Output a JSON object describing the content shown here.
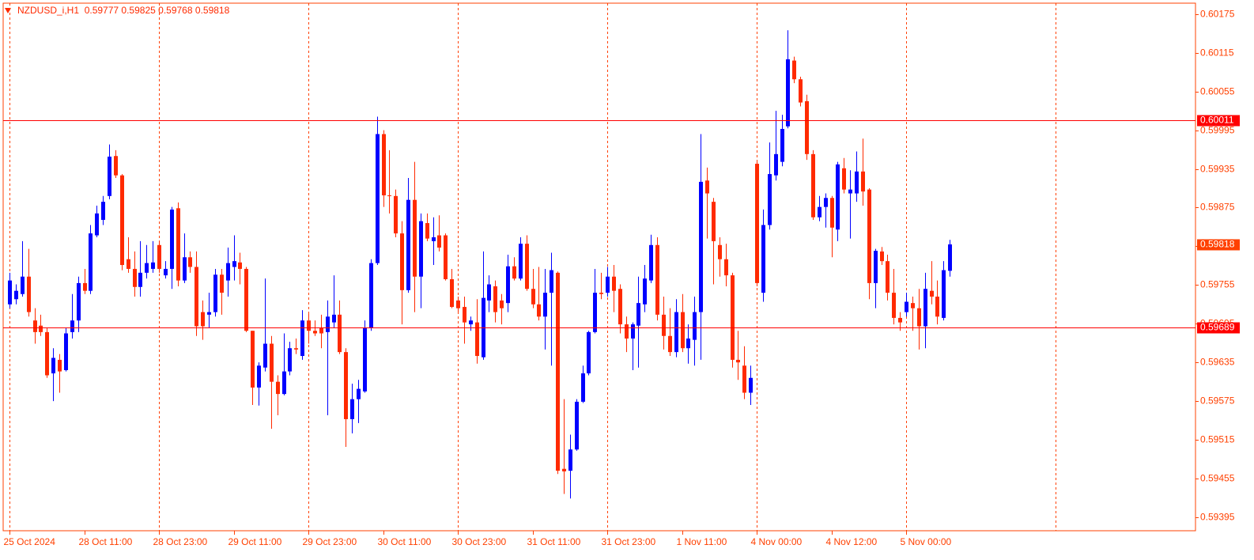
{
  "chart_data": {
    "type": "candlestick",
    "symbol": "NZDUSD_i,H1",
    "up_color": "#0000ff",
    "down_color": "#ff2a00",
    "line_color": "#ff0000",
    "axis_color": "#ff4000",
    "ylim": [
      0.59374,
      0.60192
    ],
    "yticks": [
      0.60175,
      0.60115,
      0.60055,
      0.59995,
      0.59935,
      0.59875,
      0.59815,
      0.59755,
      0.59695,
      0.59635,
      0.59575,
      0.59515,
      0.59455,
      0.59395
    ],
    "xticks": [
      {
        "value": 0,
        "label": "25 Oct 2024"
      },
      {
        "value": 12,
        "label": "28 Oct 11:00"
      },
      {
        "value": 24,
        "label": "28 Oct 23:00"
      },
      {
        "value": 36,
        "label": "29 Oct 11:00"
      },
      {
        "value": 48,
        "label": "29 Oct 23:00"
      },
      {
        "value": 60,
        "label": "30 Oct 11:00"
      },
      {
        "value": 72,
        "label": "30 Oct 23:00"
      },
      {
        "value": 84,
        "label": "31 Oct 11:00"
      },
      {
        "value": 96,
        "label": "31 Oct 23:00"
      },
      {
        "value": 108,
        "label": "1 Nov 11:00"
      },
      {
        "value": 120,
        "label": "4 Nov 00:00"
      },
      {
        "value": 132,
        "label": "4 Nov 12:00"
      },
      {
        "value": 144,
        "label": "5 Nov 00:00"
      }
    ],
    "xgrid": [
      0,
      24,
      48,
      72,
      96,
      120,
      144,
      168
    ],
    "hlines": [
      0.60011,
      0.59689
    ],
    "open": [
      0.59725,
      0.59733,
      0.59741,
      0.59768,
      0.597,
      0.59692,
      0.59682,
      0.59618,
      0.59639,
      0.59623,
      0.59682,
      0.597,
      0.59758,
      0.59746,
      0.59832,
      0.59856,
      0.59893,
      0.59955,
      0.59925,
      0.59795,
      0.5978,
      0.59752,
      0.59774,
      0.5978,
      0.59817,
      0.5977,
      0.5978,
      0.59874,
      0.59762,
      0.59798,
      0.59783,
      0.59713,
      0.59709,
      0.59713,
      0.59771,
      0.59762,
      0.59783,
      0.5979,
      0.5978,
      0.59684,
      0.59596,
      0.59627,
      0.59664,
      0.59605,
      0.59586,
      0.59621,
      0.59657,
      0.59645,
      0.597,
      0.59684,
      0.59688,
      0.59682,
      0.59697,
      0.59709,
      0.59651,
      0.59547,
      0.59578,
      0.5959,
      0.59688,
      0.59789,
      0.59989,
      0.59894,
      0.59893,
      0.59835,
      0.59747,
      0.59887,
      0.59768,
      0.59851,
      0.59823,
      0.59832,
      0.59832,
      0.59764,
      0.59731,
      0.59721,
      0.59694,
      0.59697,
      0.59643,
      0.59731,
      0.59753,
      0.59731,
      0.59727,
      0.59784,
      0.59765,
      0.59819,
      0.59749,
      0.59725,
      0.59706,
      0.59743,
      0.59774,
      0.5947,
      0.59467,
      0.595,
      0.59574,
      0.59618,
      0.59682,
      0.59743,
      0.59743,
      0.59768,
      0.59749,
      0.59694,
      0.59672,
      0.59692,
      0.59725,
      0.59762,
      0.59817,
      0.59709,
      0.59676,
      0.59651,
      0.59713,
      0.59657,
      0.5967,
      0.59713,
      0.59917,
      0.59884,
      0.59817,
      0.59795,
      0.5977,
      0.59639,
      0.5963,
      0.59588,
      0.59943,
      0.59743,
      0.59848,
      0.59925,
      0.59946,
      0.60001,
      0.60103,
      0.60074,
      0.6004,
      0.59958,
      0.5986,
      0.59876,
      0.5989,
      0.59841,
      0.59936,
      0.59897,
      0.59897,
      0.59931,
      0.59903,
      0.59758,
      0.59807,
      0.59792,
      0.59743,
      0.59704,
      0.59713,
      0.59727,
      0.59719,
      0.59691,
      0.59746,
      0.59737,
      0.59704,
      0.59777
    ],
    "high": [
      0.59774,
      0.59756,
      0.59823,
      0.59811,
      0.59719,
      0.59709,
      0.59688,
      0.59657,
      0.59648,
      0.59688,
      0.59741,
      0.59768,
      0.5978,
      0.59848,
      0.59878,
      0.59893,
      0.59973,
      0.59964,
      0.59927,
      0.59829,
      0.59807,
      0.59823,
      0.59817,
      0.59823,
      0.59823,
      0.59792,
      0.59876,
      0.59883,
      0.59835,
      0.59807,
      0.59807,
      0.59731,
      0.59743,
      0.5978,
      0.5978,
      0.59813,
      0.59832,
      0.59805,
      0.59783,
      0.59684,
      0.59635,
      0.59765,
      0.59676,
      0.59615,
      0.5968,
      0.59667,
      0.59672,
      0.59716,
      0.5971,
      0.597,
      0.59709,
      0.59731,
      0.5977,
      0.59731,
      0.59657,
      0.59602,
      0.59608,
      0.597,
      0.59795,
      0.60016,
      0.59995,
      0.59964,
      0.59903,
      0.59854,
      0.59921,
      0.59946,
      0.59866,
      0.59866,
      0.5986,
      0.59863,
      0.59835,
      0.5978,
      0.59737,
      0.59737,
      0.59706,
      0.59733,
      0.59807,
      0.5977,
      0.59762,
      0.59741,
      0.59802,
      0.59798,
      0.59829,
      0.59832,
      0.5978,
      0.59783,
      0.5978,
      0.59805,
      0.59776,
      0.59578,
      0.59523,
      0.59578,
      0.5963,
      0.59684,
      0.5978,
      0.59774,
      0.59783,
      0.59786,
      0.59756,
      0.59706,
      0.59697,
      0.59768,
      0.59786,
      0.59833,
      0.59829,
      0.59737,
      0.59719,
      0.59733,
      0.59741,
      0.59694,
      0.59737,
      0.59989,
      0.59937,
      0.5989,
      0.59829,
      0.59819,
      0.59774,
      0.59684,
      0.5966,
      0.5963,
      0.59946,
      0.59872,
      0.59976,
      0.60025,
      0.60019,
      0.6015,
      0.60109,
      0.60078,
      0.6005,
      0.59964,
      0.59893,
      0.59897,
      0.59893,
      0.59946,
      0.59952,
      0.59933,
      0.59962,
      0.59982,
      0.59905,
      0.59811,
      0.59814,
      0.59802,
      0.5978,
      0.59713,
      0.59743,
      0.59737,
      0.59749,
      0.59774,
      0.59792,
      0.59762,
      0.59792,
      0.59825
    ],
    "low": [
      0.59719,
      0.59725,
      0.59737,
      0.59706,
      0.59664,
      0.59676,
      0.59611,
      0.59575,
      0.59588,
      0.59621,
      0.59672,
      0.59682,
      0.59741,
      0.59741,
      0.59829,
      0.59848,
      0.59888,
      0.59921,
      0.59778,
      0.59774,
      0.59737,
      0.59737,
      0.59765,
      0.59774,
      0.59774,
      0.59765,
      0.59749,
      0.59753,
      0.59758,
      0.59774,
      0.59676,
      0.5967,
      0.59688,
      0.59706,
      0.59709,
      0.59737,
      0.59762,
      0.59756,
      0.59682,
      0.59569,
      0.59568,
      0.59621,
      0.59532,
      0.59553,
      0.59584,
      0.59615,
      0.59648,
      0.59639,
      0.59664,
      0.59676,
      0.59657,
      0.59553,
      0.59688,
      0.59648,
      0.59504,
      0.59525,
      0.59541,
      0.59588,
      0.59684,
      0.59786,
      0.59876,
      0.59866,
      0.59829,
      0.59694,
      0.59743,
      0.59713,
      0.59719,
      0.59823,
      0.59786,
      0.59807,
      0.59762,
      0.59719,
      0.59713,
      0.59664,
      0.59684,
      0.59633,
      0.59639,
      0.59713,
      0.59697,
      0.59694,
      0.59713,
      0.59762,
      0.59762,
      0.59746,
      0.59719,
      0.597,
      0.59655,
      0.5963,
      0.59462,
      0.59431,
      0.59424,
      0.59498,
      0.59572,
      0.59615,
      0.5968,
      0.59733,
      0.59737,
      0.59713,
      0.5968,
      0.59651,
      0.59623,
      0.59627,
      0.59713,
      0.59758,
      0.597,
      0.59655,
      0.59645,
      0.59643,
      0.59651,
      0.59633,
      0.5963,
      0.59639,
      0.59827,
      0.59756,
      0.59768,
      0.59753,
      0.59627,
      0.59608,
      0.59578,
      0.59569,
      0.59753,
      0.59729,
      0.59841,
      0.59917,
      0.59939,
      0.59998,
      0.60068,
      0.60032,
      0.59949,
      0.59856,
      0.59854,
      0.59844,
      0.59798,
      0.59823,
      0.59897,
      0.59827,
      0.59884,
      0.59878,
      0.59733,
      0.59719,
      0.59786,
      0.59731,
      0.59694,
      0.59684,
      0.59706,
      0.59684,
      0.59655,
      0.59657,
      0.59725,
      0.59694,
      0.597,
      0.59768
    ],
    "close": [
      0.59762,
      0.59746,
      0.59768,
      0.59713,
      0.59682,
      0.59682,
      0.59615,
      0.59642,
      0.59621,
      0.5968,
      0.597,
      0.59758,
      0.59746,
      0.59835,
      0.59866,
      0.59884,
      0.59954,
      0.59925,
      0.59786,
      0.5978,
      0.59752,
      0.59774,
      0.59789,
      0.5979,
      0.5978,
      0.5978,
      0.59872,
      0.59762,
      0.59798,
      0.59783,
      0.59691,
      0.59691,
      0.59713,
      0.59771,
      0.59743,
      0.59789,
      0.59792,
      0.5978,
      0.59684,
      0.59596,
      0.5963,
      0.59664,
      0.59605,
      0.59586,
      0.59621,
      0.59657,
      0.59655,
      0.597,
      0.59684,
      0.5968,
      0.5968,
      0.59706,
      0.59709,
      0.59651,
      0.59547,
      0.59578,
      0.59594,
      0.59688,
      0.59789,
      0.59989,
      0.59894,
      0.59893,
      0.59835,
      0.59747,
      0.59887,
      0.59768,
      0.59854,
      0.59827,
      0.59829,
      0.59813,
      0.59764,
      0.59721,
      0.59719,
      0.59697,
      0.597,
      0.59645,
      0.59735,
      0.59756,
      0.59713,
      0.59719,
      0.59784,
      0.59765,
      0.59819,
      0.59749,
      0.59725,
      0.59706,
      0.59743,
      0.59778,
      0.59467,
      0.59466,
      0.595,
      0.59574,
      0.59618,
      0.59682,
      0.59743,
      0.59741,
      0.59768,
      0.59746,
      0.59694,
      0.59672,
      0.59694,
      0.59727,
      0.59765,
      0.59817,
      0.59709,
      0.59676,
      0.59651,
      0.59713,
      0.59657,
      0.59672,
      0.59713,
      0.59915,
      0.59897,
      0.59823,
      0.59795,
      0.5977,
      0.59639,
      0.59635,
      0.59588,
      0.59611,
      0.59758,
      0.59848,
      0.59927,
      0.59958,
      0.59997,
      0.60105,
      0.60074,
      0.60038,
      0.59958,
      0.5986,
      0.59876,
      0.5989,
      0.59844,
      0.59942,
      0.59903,
      0.59903,
      0.59931,
      0.599,
      0.59758,
      0.59808,
      0.59792,
      0.59743,
      0.59704,
      0.59697,
      0.59729,
      0.59719,
      0.59691,
      0.59749,
      0.59737,
      0.59706,
      0.59778,
      0.59818
    ]
  }
}
